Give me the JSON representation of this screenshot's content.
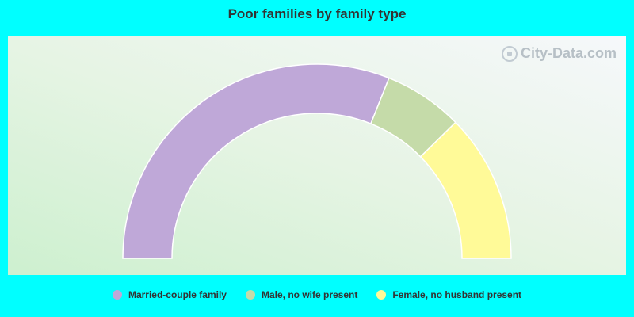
{
  "chart_data": {
    "type": "pie",
    "title": "Poor families by family type",
    "style": "half-donut",
    "categories": [
      "Married-couple family",
      "Male, no wife present",
      "Female, no husband present"
    ],
    "values": [
      62.1,
      13.2,
      24.7
    ],
    "colors": [
      "#bfa8d8",
      "#c5dba9",
      "#fffa98"
    ],
    "legend_position": "bottom-center"
  },
  "watermark": "City-Data.com"
}
